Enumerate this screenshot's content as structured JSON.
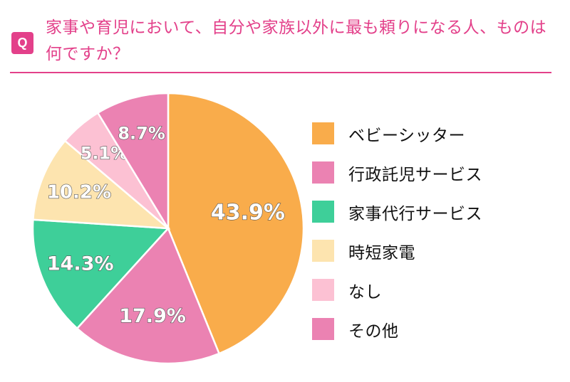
{
  "header": {
    "badge": "Q",
    "question": "家事や育児において、自分や家族以外に最も頼りになる人、ものは何ですか？"
  },
  "chart_data": {
    "type": "pie",
    "title": "",
    "start_angle_deg": 0,
    "direction": "clockwise",
    "legend_position": "right",
    "slices": [
      {
        "label": "ベビーシッター",
        "value": 43.9,
        "display": "43.9%",
        "color": "#f9ac4b"
      },
      {
        "label": "行政託児サービス",
        "value": 17.9,
        "display": "17.9%",
        "color": "#eb82b2"
      },
      {
        "label": "家事代行サービス",
        "value": 14.3,
        "display": "14.3%",
        "color": "#3ecf99"
      },
      {
        "label": "時短家電",
        "value": 10.2,
        "display": "10.2%",
        "color": "#fde4af"
      },
      {
        "label": "なし",
        "value": 5.1,
        "display": "5.1%",
        "color": "#fcc1d3"
      },
      {
        "label": "その他",
        "value": 8.7,
        "display": "8.7%",
        "color": "#eb82b2"
      }
    ]
  }
}
